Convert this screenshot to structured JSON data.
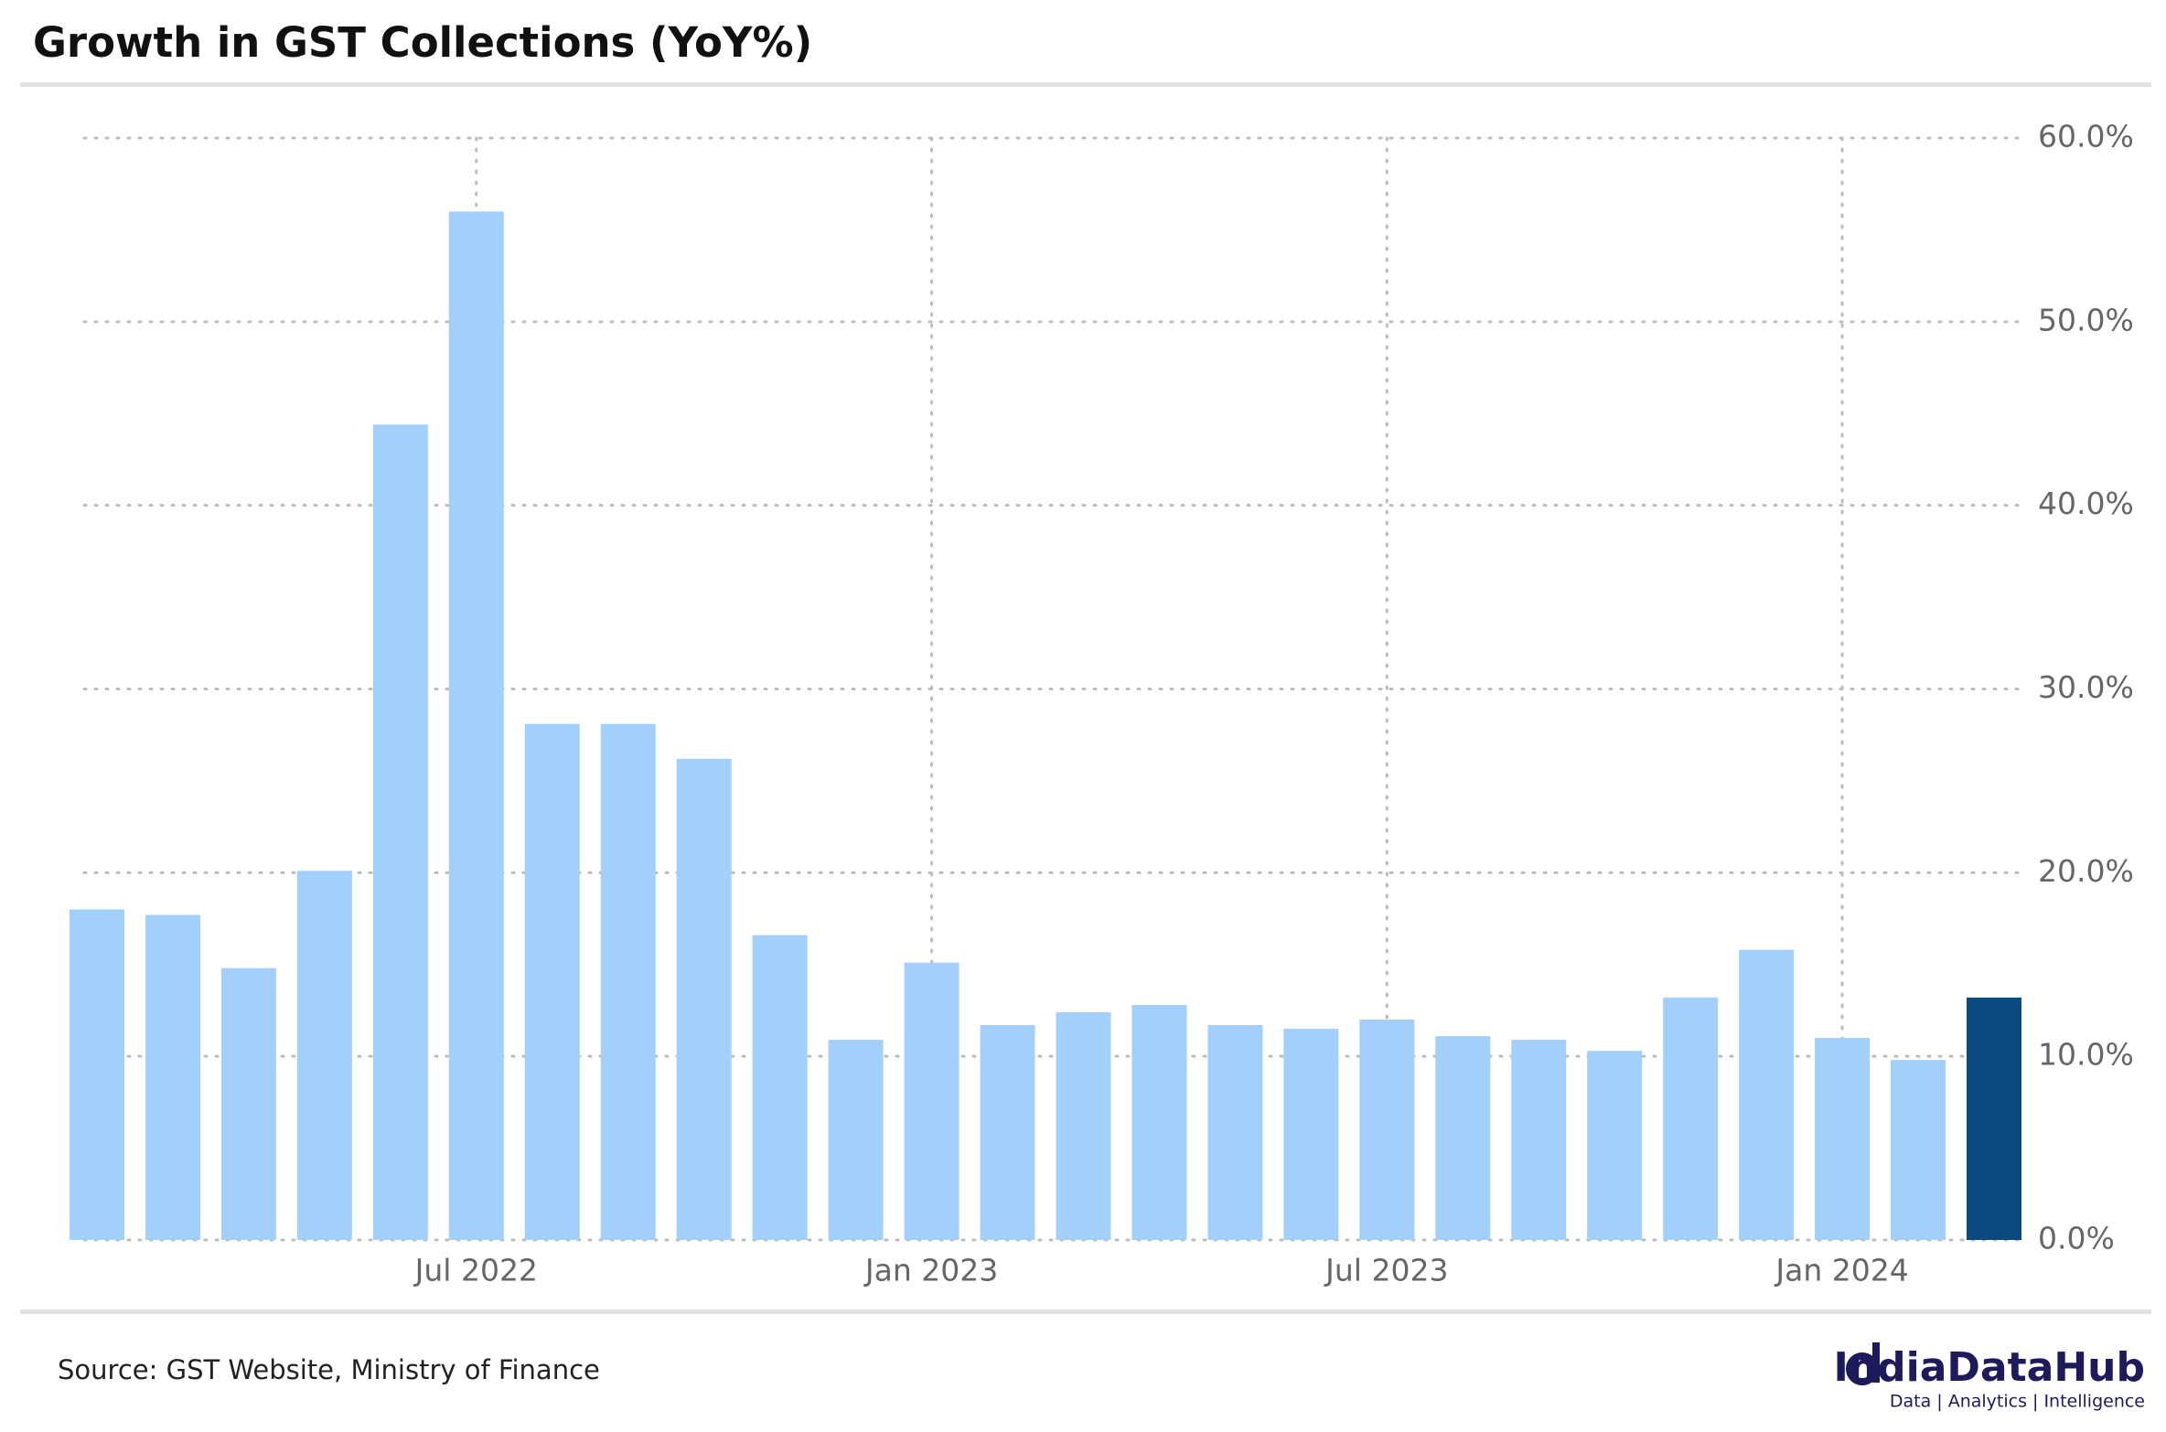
{
  "chart_data": {
    "type": "bar",
    "title": "Growth in GST Collections (YoY%)",
    "categories": [
      null,
      null,
      null,
      null,
      null,
      "Jul 2022",
      null,
      null,
      null,
      null,
      null,
      "Jan 2023",
      null,
      null,
      null,
      null,
      null,
      "Jul 2023",
      null,
      null,
      null,
      null,
      null,
      "Jan 2024",
      null,
      null
    ],
    "values": [
      18.0,
      17.7,
      14.8,
      20.1,
      44.4,
      56.0,
      28.1,
      28.1,
      26.2,
      16.6,
      10.9,
      15.1,
      11.7,
      12.4,
      12.8,
      11.7,
      11.5,
      12.0,
      11.1,
      10.9,
      10.3,
      13.2,
      15.8,
      11.0,
      9.8,
      13.2
    ],
    "colors": [
      "#a3d0fb",
      "#a3d0fb",
      "#a3d0fb",
      "#a3d0fb",
      "#a3d0fb",
      "#a3d0fb",
      "#a3d0fb",
      "#a3d0fb",
      "#a3d0fb",
      "#a3d0fb",
      "#a3d0fb",
      "#a3d0fb",
      "#a3d0fb",
      "#a3d0fb",
      "#a3d0fb",
      "#a3d0fb",
      "#a3d0fb",
      "#a3d0fb",
      "#a3d0fb",
      "#a3d0fb",
      "#a3d0fb",
      "#a3d0fb",
      "#a3d0fb",
      "#a3d0fb",
      "#a3d0fb",
      "#0b4a80"
    ],
    "ylim": [
      0,
      60
    ],
    "yticks": [
      {
        "value": 0,
        "label": "0.0%"
      },
      {
        "value": 10,
        "label": "10.0%"
      },
      {
        "value": 20,
        "label": "20.0%"
      },
      {
        "value": 30,
        "label": "30.0%"
      },
      {
        "value": 40,
        "label": "40.0%"
      },
      {
        "value": 50,
        "label": "50.0%"
      },
      {
        "value": 60,
        "label": "60.0%"
      }
    ],
    "grid": true,
    "source": "Source: GST Website, Ministry of Finance"
  },
  "logo": {
    "name": "IndiaDataHub",
    "tagline": "Data | Analytics | Intelligence"
  }
}
